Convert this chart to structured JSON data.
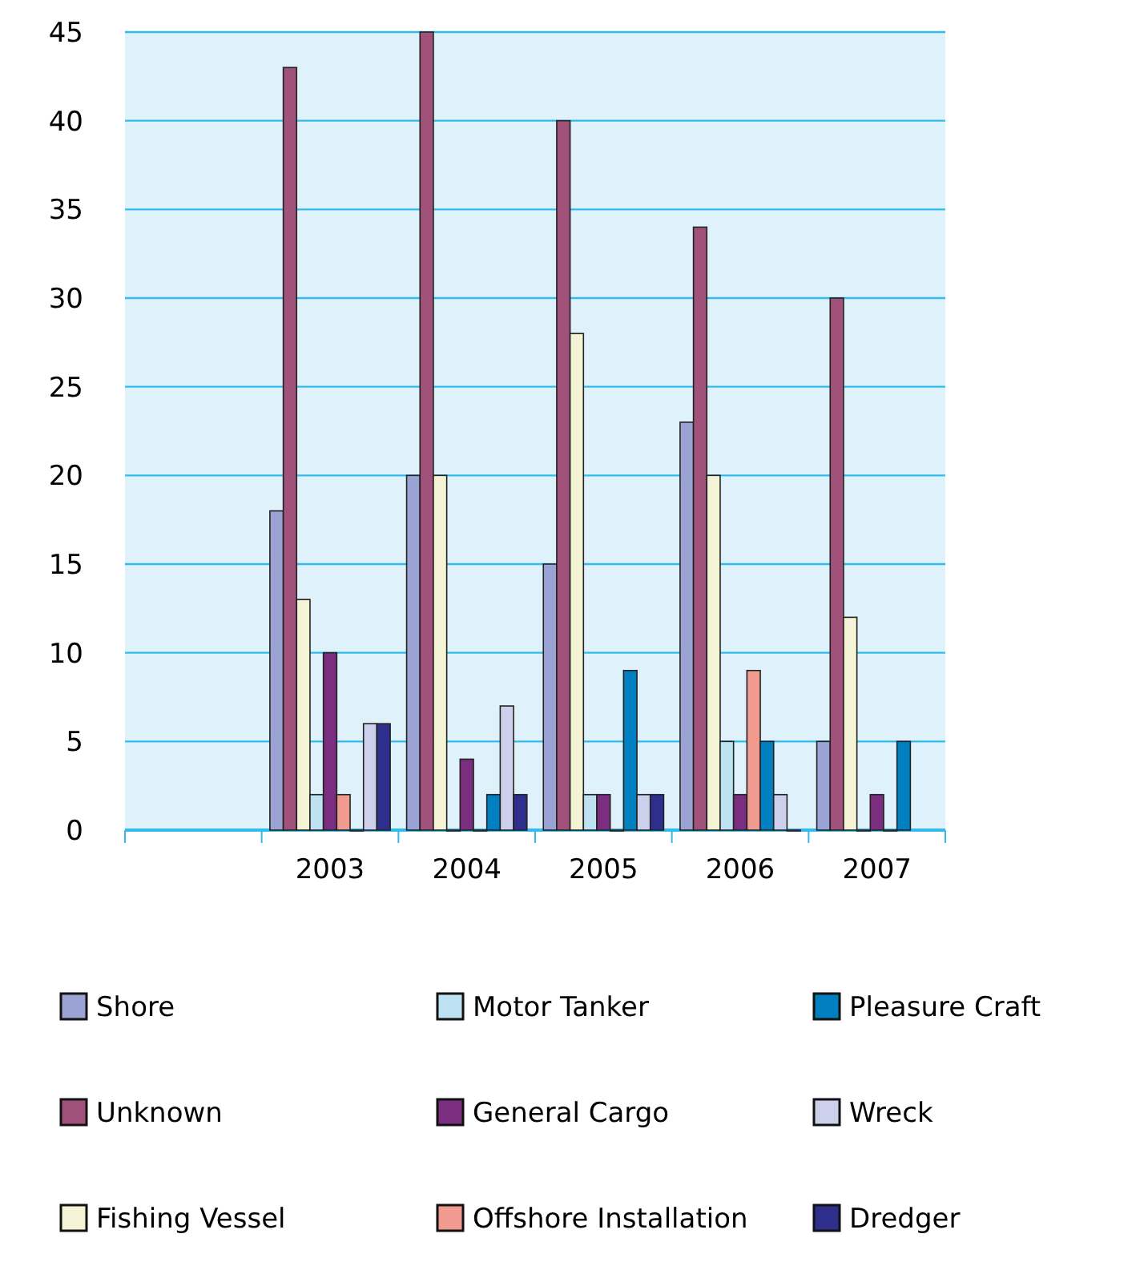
{
  "chart_data": {
    "type": "bar",
    "categories": [
      null,
      "2003",
      "2004",
      "2005",
      "2006",
      "2007"
    ],
    "ylim": [
      0,
      45
    ],
    "yticks": [
      0,
      5,
      10,
      15,
      20,
      25,
      30,
      35,
      40,
      45
    ],
    "grid": "y",
    "legend": "bottom",
    "series": [
      {
        "name": "Shore",
        "color": "#9aa3d4",
        "values": [
          null,
          18,
          20,
          15,
          23,
          5
        ]
      },
      {
        "name": "Unknown",
        "color": "#a0527a",
        "values": [
          null,
          43,
          45,
          40,
          34,
          30
        ]
      },
      {
        "name": "Fishing Vessel",
        "color": "#f5f3d6",
        "values": [
          null,
          13,
          20,
          28,
          20,
          12
        ]
      },
      {
        "name": "Motor Tanker",
        "color": "#bfe2f2",
        "values": [
          null,
          2,
          0,
          2,
          5,
          0
        ]
      },
      {
        "name": "General Cargo",
        "color": "#7b2d7f",
        "values": [
          null,
          10,
          4,
          2,
          2,
          2
        ]
      },
      {
        "name": "Offshore Installation",
        "color": "#f09a90",
        "values": [
          null,
          2,
          0,
          0,
          9,
          0
        ]
      },
      {
        "name": "Pleasure Craft",
        "color": "#0080c0",
        "values": [
          null,
          0,
          2,
          9,
          5,
          5
        ]
      },
      {
        "name": "Wreck",
        "color": "#cdd0ea",
        "values": [
          null,
          6,
          7,
          2,
          2,
          null
        ]
      },
      {
        "name": "Dredger",
        "color": "#2e2e8c",
        "values": [
          null,
          6,
          2,
          2,
          0,
          null
        ]
      }
    ]
  }
}
